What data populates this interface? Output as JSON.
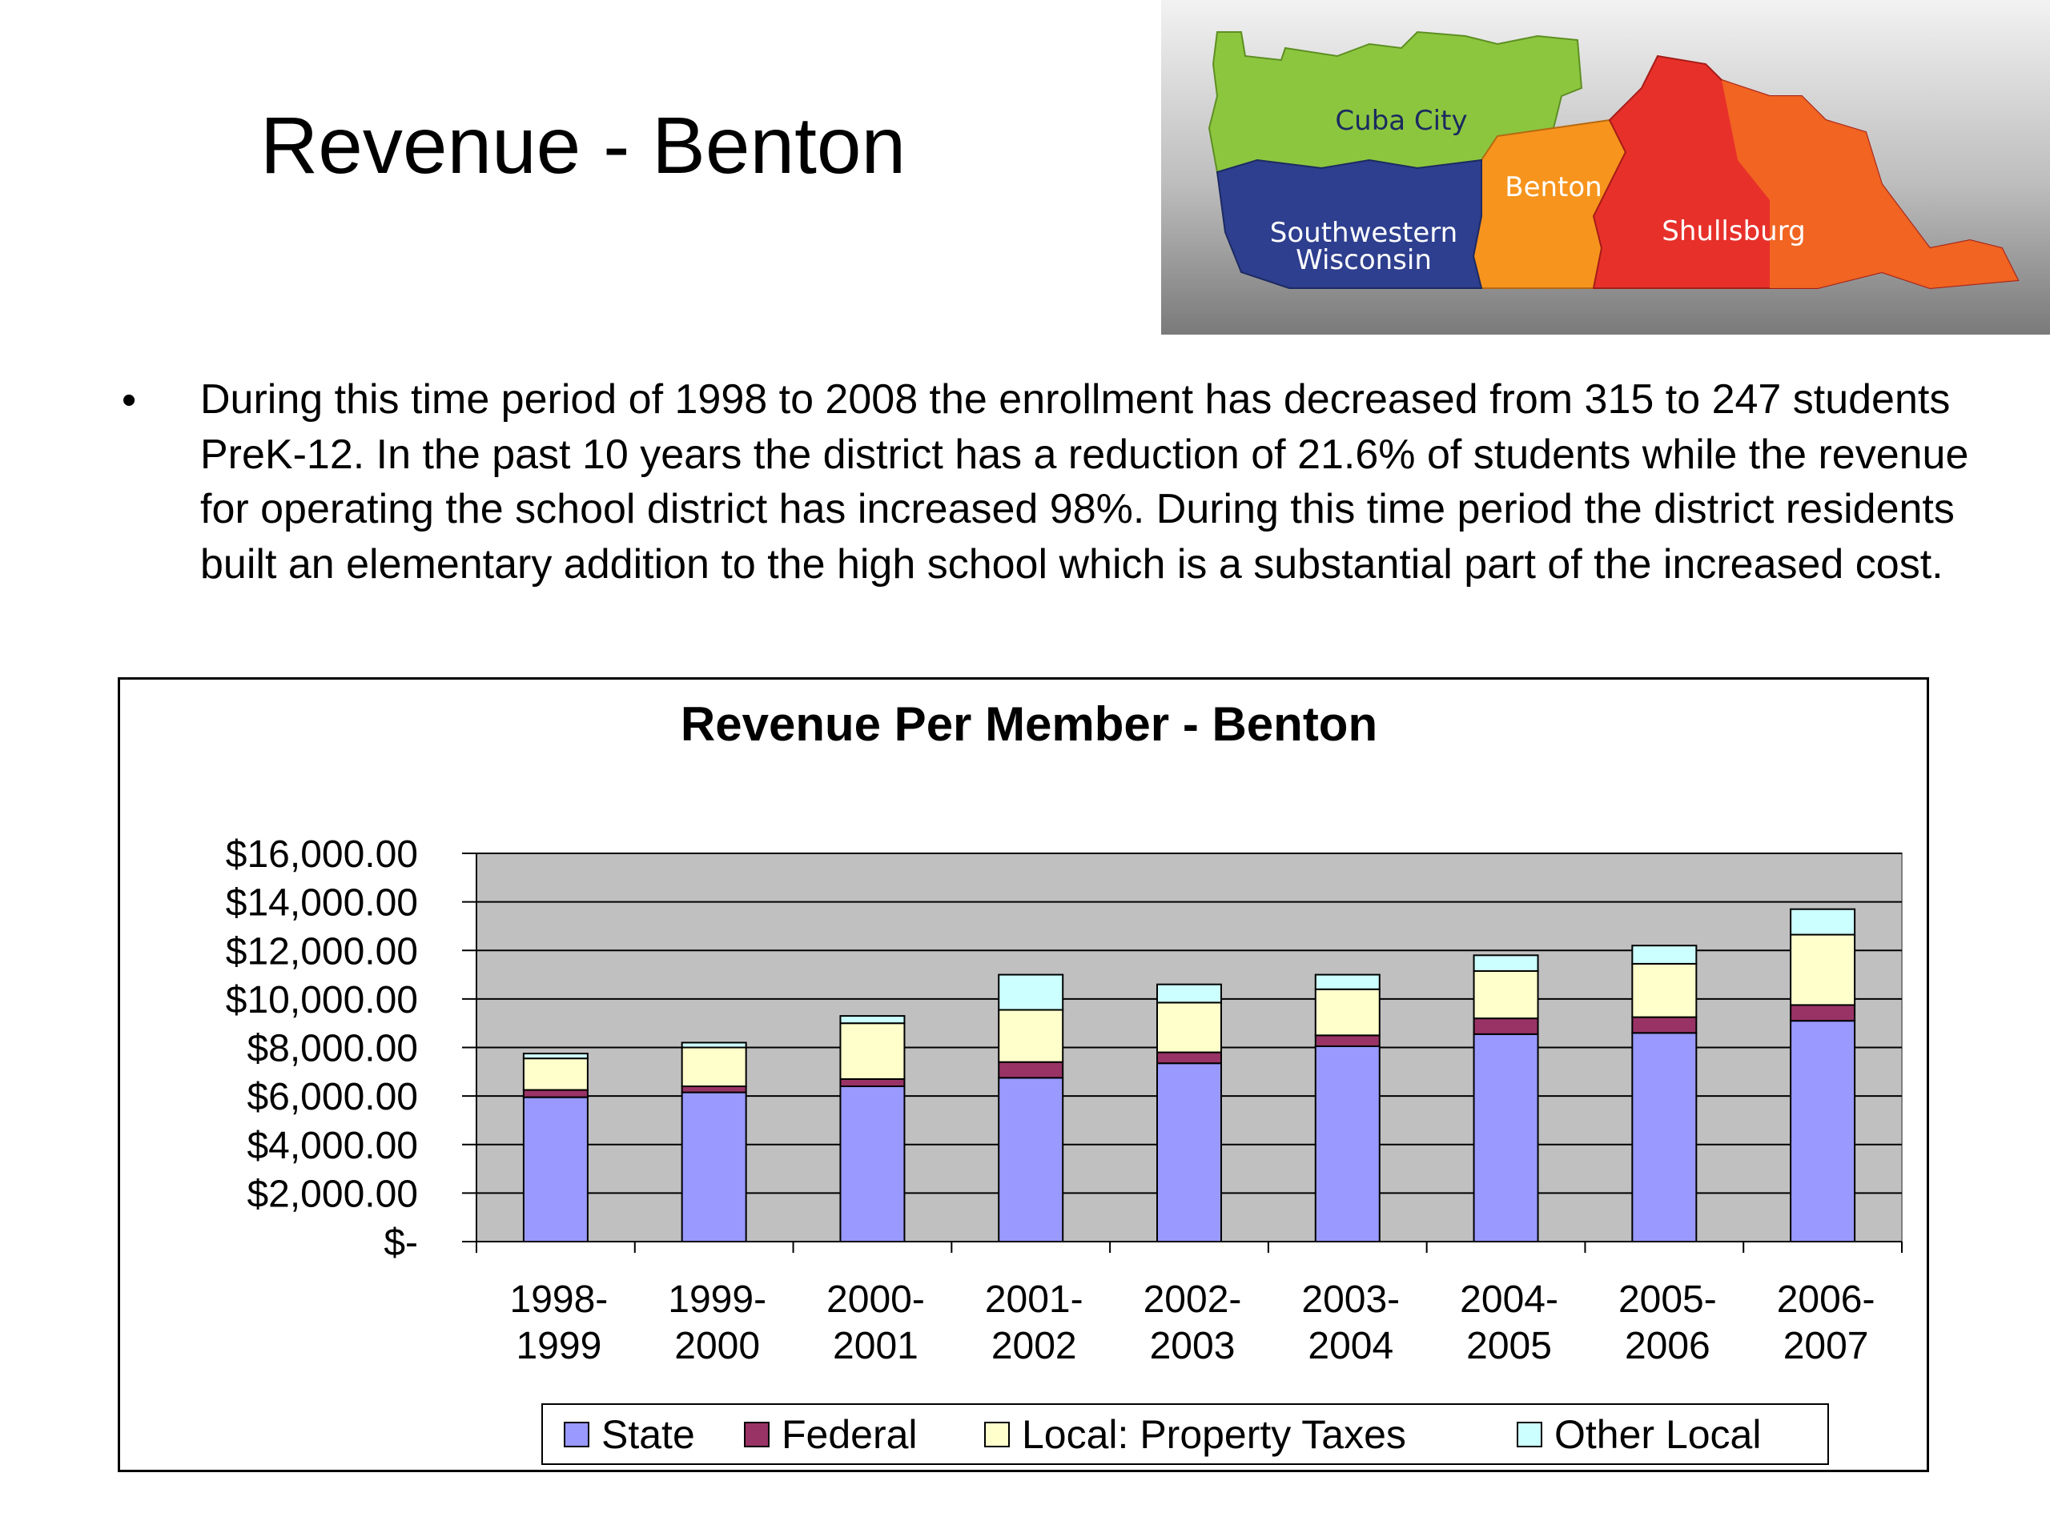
{
  "slide": {
    "title": "Revenue - Benton",
    "bullet": "During this time period of 1998 to 2008 the enrollment has decreased from 315 to 247 students PreK-12.  In the past 10 years the district has a reduction of 21.6% of students while the revenue for operating the school district has increased 98%.  During this time period the district residents built an elementary addition to the high school which is a substantial part of the increased cost."
  },
  "map": {
    "regions": [
      {
        "name": "Cuba City",
        "color": "#8cc63f"
      },
      {
        "name": "Benton",
        "color": "#f7941d"
      },
      {
        "name": "Southwestern Wisconsin",
        "color": "#2e3f8f"
      },
      {
        "name": "Shullsburg",
        "color": "#e8302a"
      }
    ],
    "labels": {
      "cuba_city": "Cuba City",
      "benton": "Benton",
      "southwestern_1": "Southwestern",
      "southwestern_2": "Wisconsin",
      "shullsburg": "Shullsburg"
    }
  },
  "chart_data": {
    "type": "bar",
    "stacked": true,
    "title": "Revenue Per Member - Benton",
    "xlabel": "",
    "ylabel": "",
    "ylim": [
      0,
      16000
    ],
    "yticks": [
      0,
      2000,
      4000,
      6000,
      8000,
      10000,
      12000,
      14000,
      16000
    ],
    "ytick_labels": [
      "$-",
      "$2,000.00",
      "$4,000.00",
      "$6,000.00",
      "$8,000.00",
      "$10,000.00",
      "$12,000.00",
      "$14,000.00",
      "$16,000.00"
    ],
    "grid": true,
    "legend": "bottom",
    "categories": [
      "1998-1999",
      "1999-2000",
      "2000-2001",
      "2001-2002",
      "2002-2003",
      "2003-2004",
      "2004-2005",
      "2005-2006",
      "2006-2007"
    ],
    "category_lines": [
      [
        "1998-",
        "1999"
      ],
      [
        "1999-",
        "2000"
      ],
      [
        "2000-",
        "2001"
      ],
      [
        "2001-",
        "2002"
      ],
      [
        "2002-",
        "2003"
      ],
      [
        "2003-",
        "2004"
      ],
      [
        "2004-",
        "2005"
      ],
      [
        "2005-",
        "2006"
      ],
      [
        "2006-",
        "2007"
      ]
    ],
    "series": [
      {
        "name": "State",
        "color": "#9999ff",
        "values": [
          5950,
          6150,
          6400,
          6750,
          7350,
          8050,
          8550,
          8600,
          9100
        ]
      },
      {
        "name": "Federal",
        "color": "#993366",
        "values": [
          300,
          250,
          300,
          650,
          450,
          450,
          650,
          650,
          650
        ]
      },
      {
        "name": "Local: Property Taxes",
        "color": "#ffffcc",
        "values": [
          1300,
          1600,
          2300,
          2150,
          2050,
          1900,
          1950,
          2200,
          2900
        ]
      },
      {
        "name": "Other Local",
        "color": "#ccffff",
        "values": [
          200,
          200,
          300,
          1450,
          750,
          600,
          650,
          750,
          1050
        ]
      }
    ]
  }
}
